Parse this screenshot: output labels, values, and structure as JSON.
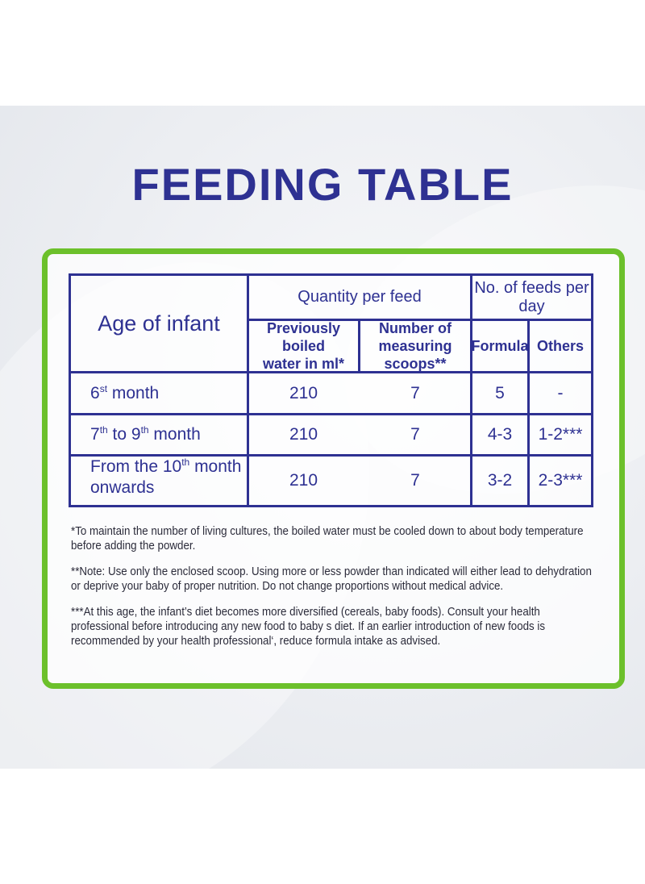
{
  "title": "FEEDING TABLE",
  "table": {
    "age_header": "Age of infant",
    "quantity_header": "Quantity per feed",
    "feeds_header": "No. of feeds per day",
    "water_header_1": "Previously boiled",
    "water_header_2": "water in ml*",
    "scoops_header_1": "Number of",
    "scoops_header_2": "measuring scoops**",
    "formula_header": "Formula",
    "others_header": "Others",
    "rows": [
      {
        "age_a": "6",
        "age_a_sup": "st",
        "age_b": " month",
        "water": "210",
        "scoops": "7",
        "formula": "5",
        "others": "-"
      },
      {
        "age_a": "7",
        "age_a_sup": "th",
        "age_b": " to 9",
        "age_b_sup": "th",
        "age_c": " month",
        "water": "210",
        "scoops": "7",
        "formula": "4-3",
        "others": "1-2***"
      },
      {
        "age_a": "From the 10",
        "age_a_sup": "th",
        "age_b": " month",
        "age_line2": "onwards",
        "water": "210",
        "scoops": "7",
        "formula": "3-2",
        "others": "2-3***"
      }
    ]
  },
  "notes": {
    "note1": "*To maintain the number of living cultures, the boiled water must be cooled down to about body temperature before adding the powder.",
    "note2": "**Note: Use only the enclosed scoop. Using more or less powder than indicated will either lead to dehydration or deprive your baby of proper nutrition. Do not change proportions without medical advice.",
    "note3": "***At this age, the infant’s diet becomes more diversified (cereals, baby foods). Consult your health professional before introducing any new food to baby s diet. If an earlier introduction of new foods is recommended by your health professional‘, reduce formula intake as advised."
  },
  "colors": {
    "title": "#2e3192",
    "frame": "#6cc02b",
    "table_lines": "#2e3192"
  }
}
